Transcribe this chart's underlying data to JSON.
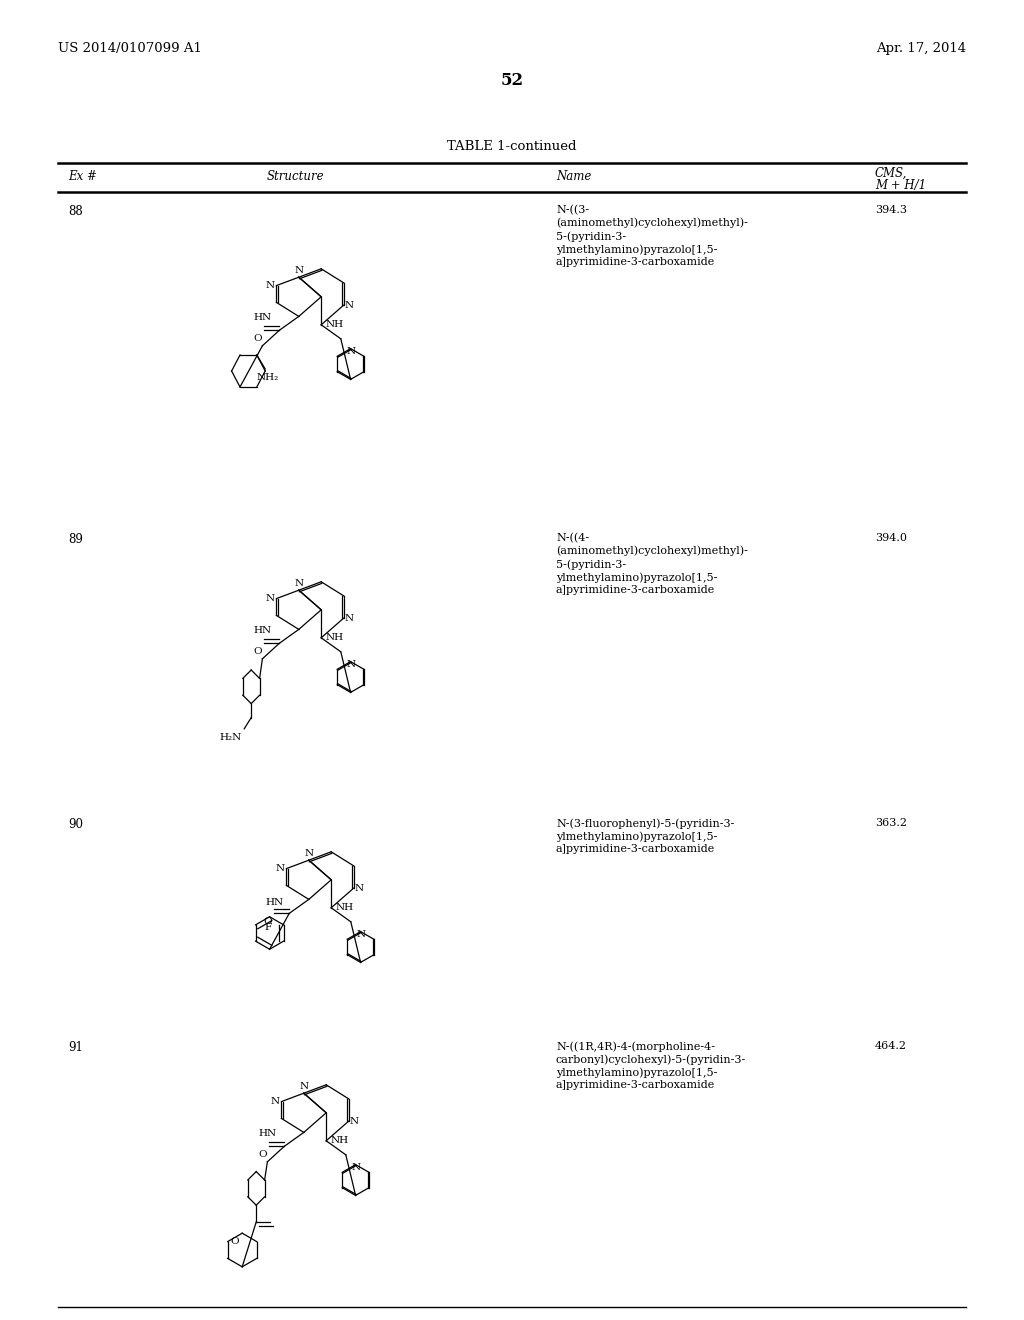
{
  "background_color": "#ffffff",
  "header_left": "US 2014/0107099 A1",
  "header_right": "Apr. 17, 2014",
  "page_number": "52",
  "table_title": "TABLE 1-continued",
  "rows": [
    {
      "ex": "88",
      "name": "N-((3-\n(aminomethyl)cyclohexyl)methyl)-\n5-(pyridin-3-\nylmethylamino)pyrazolo[1,5-\na]pyrimidine-3-carboxamide",
      "cms": "394.3"
    },
    {
      "ex": "89",
      "name": "N-((4-\n(aminomethyl)cyclohexyl)methyl)-\n5-(pyridin-3-\nylmethylamino)pyrazolo[1,5-\na]pyrimidine-3-carboxamide",
      "cms": "394.0"
    },
    {
      "ex": "90",
      "name": "N-(3-fluorophenyl)-5-(pyridin-3-\nylmethylamino)pyrazolo[1,5-\na]pyrimidine-3-carboxamide",
      "cms": "363.2"
    },
    {
      "ex": "91",
      "name": "N-((1R,4R)-4-(morpholine-4-\ncarbonyl)cyclohexyl)-5-(pyridin-3-\nylmethylamino)pyrazolo[1,5-\na]pyrimidine-3-carboxamide",
      "cms": "464.2"
    }
  ]
}
